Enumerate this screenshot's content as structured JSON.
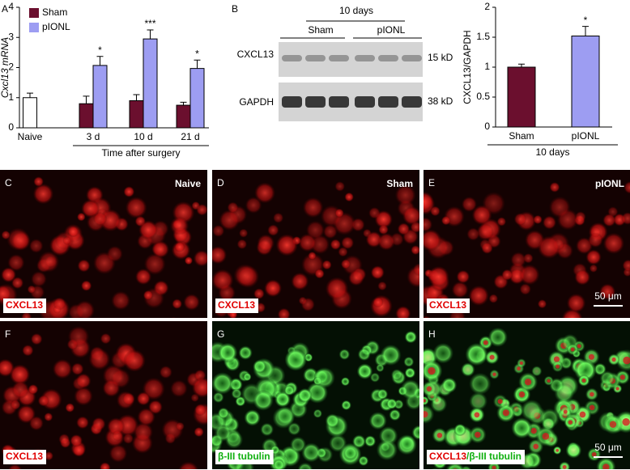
{
  "chart_data": [
    {
      "type": "bar",
      "panel": "A",
      "y_label": "Cxcl13 mRNA",
      "categories": [
        "Naive",
        "3 d",
        "10 d",
        "21 d"
      ],
      "control_values": [
        1.0,
        null,
        null,
        null
      ],
      "control_errors": [
        0.15,
        null,
        null,
        null
      ],
      "control_color": "#ffffff",
      "series": [
        {
          "name": "Sham",
          "color": "#6b0f2e",
          "values": [
            null,
            0.8,
            0.9,
            0.75
          ],
          "errors": [
            null,
            0.25,
            0.2,
            0.1
          ]
        },
        {
          "name": "pIONL",
          "color": "#9d9df2",
          "values": [
            null,
            2.07,
            2.95,
            1.97
          ],
          "errors": [
            null,
            0.3,
            0.3,
            0.28
          ]
        }
      ],
      "significance": [
        null,
        "*",
        "***",
        "*"
      ],
      "group_label": "Time after surgery",
      "ylim": [
        0,
        4
      ],
      "yticks": [
        0,
        1,
        2,
        3,
        4
      ]
    },
    {
      "type": "bar",
      "y_label": "CXCL13/GAPDH",
      "categories": [
        "Sham",
        "pIONL"
      ],
      "values": [
        1.0,
        1.52
      ],
      "errors": [
        0.05,
        0.16
      ],
      "colors": [
        "#6b0f2e",
        "#9d9df2"
      ],
      "significance": [
        null,
        "*"
      ],
      "group_label": "10 days",
      "ylim": [
        0,
        2
      ],
      "yticks": [
        0,
        0.5,
        1,
        1.5,
        2
      ]
    }
  ],
  "blot": {
    "panel": "B",
    "header": "10 days",
    "groups": [
      "Sham",
      "pIONL"
    ],
    "proteins": [
      "CXCL13",
      "GAPDH"
    ],
    "sizes": [
      "15 kD",
      "38 kD"
    ]
  },
  "micrographs": [
    {
      "letter": "C",
      "condition": "Naive",
      "channel": "red",
      "stain": [
        {
          "text": "CXCL13",
          "color": "#e00000"
        }
      ]
    },
    {
      "letter": "D",
      "condition": "Sham",
      "channel": "red",
      "stain": [
        {
          "text": "CXCL13",
          "color": "#e00000"
        }
      ]
    },
    {
      "letter": "E",
      "condition": "pIONL",
      "channel": "red",
      "stain": [
        {
          "text": "CXCL13",
          "color": "#e00000"
        }
      ],
      "scale_bar": "50 μm"
    },
    {
      "letter": "F",
      "channel": "red",
      "stain": [
        {
          "text": "CXCL13",
          "color": "#e00000"
        }
      ]
    },
    {
      "letter": "G",
      "channel": "green",
      "stain": [
        {
          "text": "β-III tubulin",
          "color": "#10b010"
        }
      ]
    },
    {
      "letter": "H",
      "channel": "merge",
      "stain": [
        {
          "text": "CXCL13",
          "color": "#e00000"
        },
        {
          "text": "/β-III tubulin",
          "color": "#10b010"
        }
      ],
      "scale_bar": "50 μm"
    }
  ]
}
